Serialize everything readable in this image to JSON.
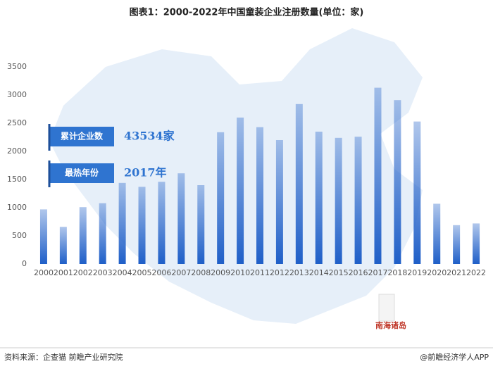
{
  "chart_data": {
    "type": "bar",
    "title": "图表1：2000-2022年中国童装企业注册数量(单位：家)",
    "categories": [
      "2000",
      "2001",
      "2002",
      "2003",
      "2004",
      "2005",
      "2006",
      "2007",
      "2008",
      "2009",
      "2010",
      "2011",
      "2012",
      "2013",
      "2014",
      "2015",
      "2016",
      "2017",
      "2018",
      "2019",
      "2020",
      "2021",
      "2022"
    ],
    "values": [
      970,
      660,
      1010,
      1080,
      1440,
      1370,
      1460,
      1610,
      1400,
      2340,
      2600,
      2430,
      2200,
      2840,
      2350,
      2240,
      2260,
      3130,
      2910,
      2530,
      1070,
      690,
      720
    ],
    "color": "#1f5fc8",
    "ylim": [
      0,
      3500
    ],
    "yticks": [
      0,
      500,
      1000,
      1500,
      2000,
      2500,
      3000,
      3500
    ],
    "grid": false,
    "annotations": [
      {
        "label": "累计企业数",
        "text": "43534家"
      },
      {
        "label": "最热年份",
        "text": "2017年"
      }
    ],
    "map_label": "南海诸岛",
    "source": "资料来源：企查猫 前瞻产业研究院",
    "credit": "@前瞻经济学人APP"
  }
}
